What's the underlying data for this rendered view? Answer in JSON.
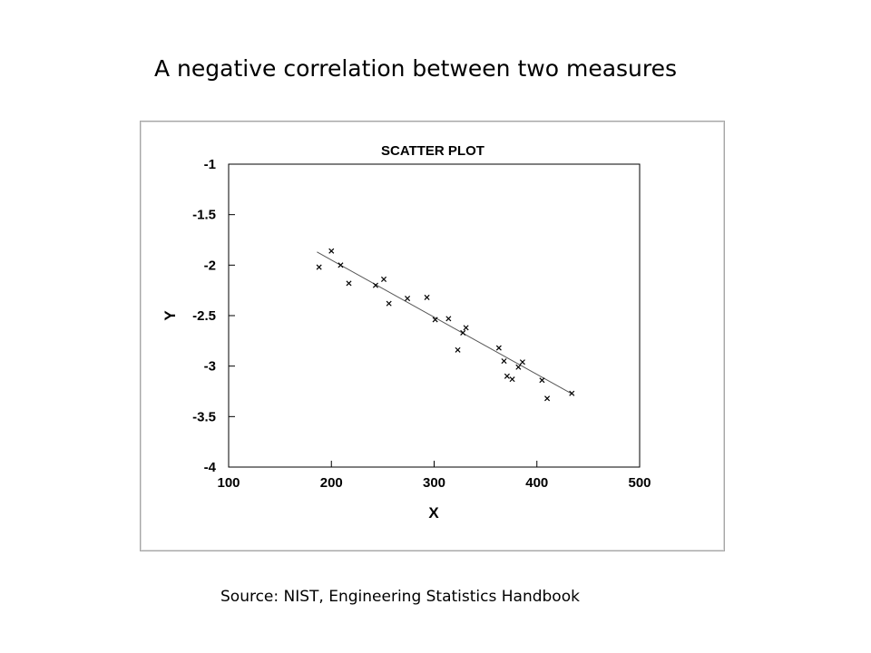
{
  "slide": {
    "title": "A negative correlation between two measures",
    "source": "Source: NIST, Engineering Statistics Handbook"
  },
  "colors": {
    "background": "#ffffff",
    "frame_border": "#a6a6a6",
    "ink": "#000000",
    "fit_line": "#555555"
  },
  "chart_data": {
    "type": "scatter",
    "title": "SCATTER PLOT",
    "xlabel": "X",
    "ylabel": "Y",
    "xlim": [
      100,
      500
    ],
    "ylim": [
      -4,
      -1
    ],
    "x_ticks": [
      100,
      200,
      300,
      400,
      500
    ],
    "y_ticks": [
      -1,
      -1.5,
      -2,
      -2.5,
      -3,
      -3.5,
      -4
    ],
    "x_tick_labels": [
      "100",
      "200",
      "300",
      "400",
      "500"
    ],
    "y_tick_labels": [
      "-1",
      "-1.5",
      "-2",
      "-2.5",
      "-3",
      "-3.5",
      "-4"
    ],
    "marker": "x",
    "grid": false,
    "legend": "none",
    "series": [
      {
        "points": [
          [
            188,
            -2.02
          ],
          [
            200,
            -1.86
          ],
          [
            209,
            -2.0
          ],
          [
            217,
            -2.18
          ],
          [
            243,
            -2.2
          ],
          [
            251,
            -2.14
          ],
          [
            256,
            -2.38
          ],
          [
            274,
            -2.33
          ],
          [
            293,
            -2.32
          ],
          [
            301,
            -2.54
          ],
          [
            314,
            -2.53
          ],
          [
            323,
            -2.84
          ],
          [
            328,
            -2.67
          ],
          [
            331,
            -2.62
          ],
          [
            363,
            -2.82
          ],
          [
            368,
            -2.95
          ],
          [
            371,
            -3.1
          ],
          [
            376,
            -3.13
          ],
          [
            382,
            -3.01
          ],
          [
            386,
            -2.96
          ],
          [
            405,
            -3.14
          ],
          [
            410,
            -3.32
          ],
          [
            434,
            -3.27
          ]
        ]
      }
    ],
    "fit_line": {
      "x": [
        186,
        435
      ],
      "y": [
        -1.87,
        -3.28
      ]
    }
  }
}
